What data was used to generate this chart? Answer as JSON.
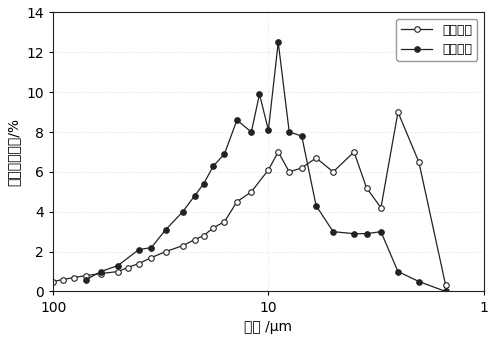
{
  "title": "",
  "xlabel": "粒径 /μm",
  "ylabel": "颗粒粒径体积/%",
  "ylim": [
    0,
    14
  ],
  "yticks": [
    0,
    2,
    4,
    6,
    8,
    10,
    12,
    14
  ],
  "xticks": [
    100,
    10,
    1
  ],
  "series1_label": "入渗颗粒",
  "series2_label": "流失颗粒",
  "series1_x": [
    100,
    90,
    80,
    70,
    60,
    50,
    45,
    40,
    35,
    30,
    25,
    22,
    20,
    18,
    16,
    14,
    12,
    10,
    9,
    8,
    7,
    6,
    5,
    4,
    3.5,
    3,
    2.5,
    2,
    1.5
  ],
  "series1_y": [
    0.5,
    0.6,
    0.7,
    0.8,
    0.9,
    1.0,
    1.2,
    1.4,
    1.7,
    2.0,
    2.3,
    2.6,
    2.8,
    3.2,
    3.5,
    4.5,
    5.0,
    6.1,
    7.0,
    6.0,
    6.2,
    6.7,
    6.0,
    7.0,
    5.2,
    4.2,
    9.0,
    6.5,
    0.3
  ],
  "series2_x": [
    70,
    60,
    50,
    40,
    35,
    30,
    25,
    22,
    20,
    18,
    16,
    14,
    12,
    11,
    10,
    9,
    8,
    7,
    6,
    5,
    4,
    3.5,
    3,
    2.5,
    2,
    1.5
  ],
  "series2_y": [
    0.6,
    1.0,
    1.3,
    2.1,
    2.2,
    3.1,
    4.0,
    4.8,
    5.4,
    6.3,
    6.9,
    8.6,
    8.0,
    9.9,
    8.1,
    12.5,
    8.0,
    7.8,
    4.3,
    3.0,
    2.9,
    2.9,
    3.0,
    1.0,
    0.5,
    0.0
  ],
  "line_color": "#222222",
  "marker_size": 4,
  "legend_loc": "upper right",
  "fontsize": 10,
  "figsize": [
    4.95,
    3.41
  ],
  "dpi": 100
}
